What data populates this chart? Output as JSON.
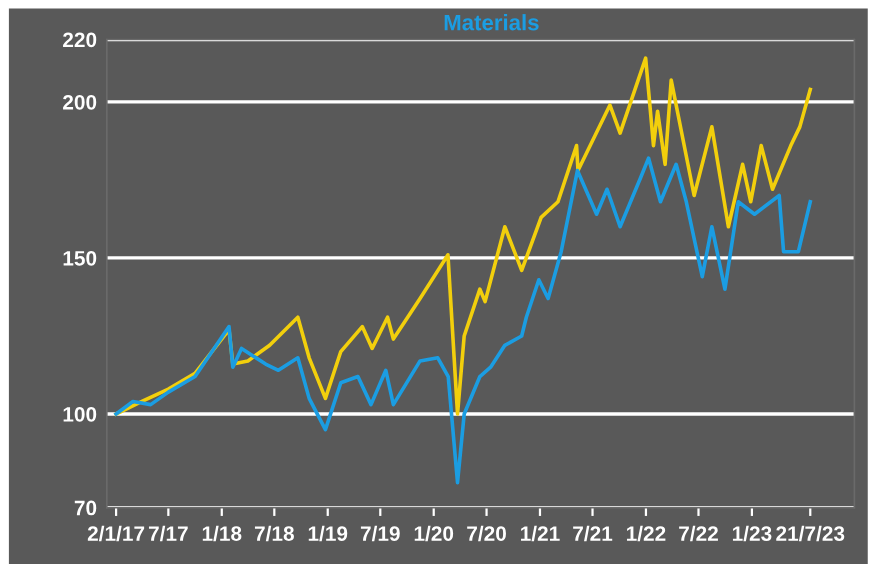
{
  "chart_data": {
    "type": "line",
    "series": [
      {
        "color": "#f2cf0c",
        "x": [
          "2017-01-02",
          "2017-04-01",
          "2017-07-01",
          "2017-10-01",
          "2018-01-26",
          "2018-02-08",
          "2018-04-01",
          "2018-06-15",
          "2018-09-20",
          "2018-10-29",
          "2018-12-24",
          "2019-02-15",
          "2019-04-30",
          "2019-06-03",
          "2019-07-26",
          "2019-08-15",
          "2019-11-15",
          "2020-02-19",
          "2020-03-23",
          "2020-04-15",
          "2020-06-08",
          "2020-06-26",
          "2020-09-02",
          "2020-10-30",
          "2021-01-05",
          "2021-03-04",
          "2021-05-07",
          "2021-05-12",
          "2021-08-30",
          "2021-10-04",
          "2021-12-31",
          "2022-01-27",
          "2022-02-10",
          "2022-03-08",
          "2022-03-29",
          "2022-06-16",
          "2022-08-16",
          "2022-10-12",
          "2022-11-30",
          "2022-12-28",
          "2023-02-02",
          "2023-03-13",
          "2023-05-15",
          "2023-06-15",
          "2023-07-21"
        ],
        "values": [
          100,
          104,
          108,
          113,
          127,
          116,
          117,
          122,
          131,
          118,
          105,
          120,
          128,
          121,
          131,
          124,
          137,
          151,
          100,
          125,
          140,
          136,
          160,
          146,
          163,
          168,
          186,
          178,
          199,
          190,
          214,
          186,
          197,
          180,
          207,
          170,
          192,
          160,
          180,
          168,
          186,
          172,
          186,
          192,
          204
        ]
      },
      {
        "name": "Materials",
        "color": "#1b9de2",
        "x": [
          "2017-01-02",
          "2017-03-01",
          "2017-05-01",
          "2017-07-01",
          "2017-10-01",
          "2018-01-26",
          "2018-02-08",
          "2018-03-10",
          "2018-06-01",
          "2018-07-15",
          "2018-09-20",
          "2018-10-29",
          "2018-12-24",
          "2019-02-15",
          "2019-04-15",
          "2019-05-30",
          "2019-07-20",
          "2019-08-15",
          "2019-11-15",
          "2020-01-15",
          "2020-02-20",
          "2020-03-23",
          "2020-04-15",
          "2020-06-08",
          "2020-07-15",
          "2020-09-02",
          "2020-10-30",
          "2020-11-15",
          "2020-12-28",
          "2021-01-29",
          "2021-03-15",
          "2021-05-10",
          "2021-07-15",
          "2021-08-20",
          "2021-10-04",
          "2021-12-15",
          "2022-01-10",
          "2022-02-20",
          "2022-04-15",
          "2022-05-20",
          "2022-07-14",
          "2022-08-16",
          "2022-09-30",
          "2022-11-15",
          "2023-01-10",
          "2023-04-05",
          "2023-04-20",
          "2023-06-10",
          "2023-07-21"
        ],
        "values": [
          100,
          104,
          103,
          107,
          112,
          128,
          115,
          121,
          116,
          114,
          118,
          105,
          95,
          110,
          112,
          103,
          114,
          103,
          117,
          118,
          112,
          78,
          100,
          112,
          115,
          122,
          125,
          131,
          143,
          137,
          152,
          178,
          164,
          172,
          160,
          176,
          182,
          168,
          180,
          168,
          144,
          160,
          140,
          168,
          164,
          170,
          152,
          152,
          168
        ]
      }
    ],
    "xlim": [
      "2016-12-01",
      "2023-12-20"
    ],
    "xticks": [
      {
        "value": "2017-01-02",
        "label": "2/1/17"
      },
      {
        "value": "2017-07-01",
        "label": "7/17"
      },
      {
        "value": "2018-01-01",
        "label": "1/18"
      },
      {
        "value": "2018-07-01",
        "label": "7/18"
      },
      {
        "value": "2019-01-01",
        "label": "1/19"
      },
      {
        "value": "2019-07-01",
        "label": "7/19"
      },
      {
        "value": "2020-01-01",
        "label": "1/20"
      },
      {
        "value": "2020-07-01",
        "label": "7/20"
      },
      {
        "value": "2021-01-01",
        "label": "1/21"
      },
      {
        "value": "2021-07-01",
        "label": "7/21"
      },
      {
        "value": "2022-01-01",
        "label": "1/22"
      },
      {
        "value": "2022-07-01",
        "label": "7/22"
      },
      {
        "value": "2023-01-01",
        "label": "1/23"
      },
      {
        "value": "2023-07-21",
        "label": "21/7/23"
      }
    ],
    "ylim": [
      70,
      220
    ],
    "yticks": [
      70,
      100,
      150,
      200,
      220
    ],
    "grid": "y",
    "legend": "top",
    "marker": "none",
    "line_style": "solid"
  }
}
